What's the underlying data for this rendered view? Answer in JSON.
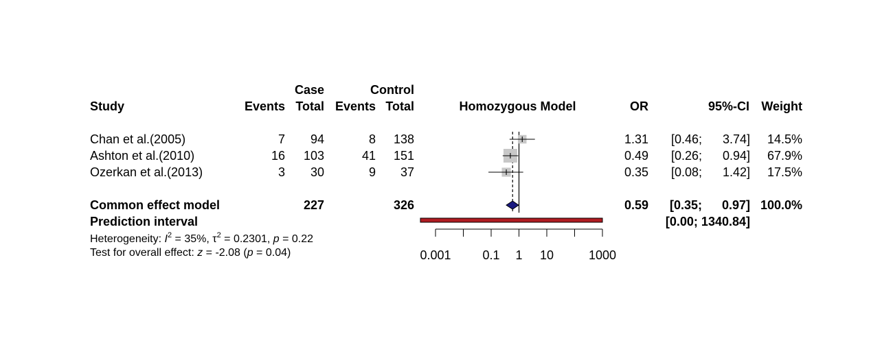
{
  "headers": {
    "case_group": "Case",
    "control_group": "Control",
    "study": "Study",
    "events": "Events",
    "total": "Total",
    "plot_title": "Homozygous Model",
    "or": "OR",
    "ci": "95%-CI",
    "weight": "Weight"
  },
  "studies": [
    {
      "name": "Chan et al.(2005)",
      "case_events": "7",
      "case_total": "94",
      "control_events": "8",
      "control_total": "138",
      "or": "1.31",
      "ci_low": "[0.46;",
      "ci_high": "3.74]",
      "weight": "14.5%"
    },
    {
      "name": "Ashton et al.(2010)",
      "case_events": "16",
      "case_total": "103",
      "control_events": "41",
      "control_total": "151",
      "or": "0.49",
      "ci_low": "[0.26;",
      "ci_high": "0.94]",
      "weight": "67.9%"
    },
    {
      "name": "Ozerkan et al.(2013)",
      "case_events": "3",
      "case_total": "30",
      "control_events": "9",
      "control_total": "37",
      "or": "0.35",
      "ci_low": "[0.08;",
      "ci_high": "1.42]",
      "weight": "17.5%"
    }
  ],
  "common": {
    "label": "Common effect model",
    "case_total": "227",
    "control_total": "326",
    "or": "0.59",
    "ci_low": "[0.35;",
    "ci_high": "0.97]",
    "weight": "100.0%"
  },
  "prediction": {
    "label": "Prediction interval",
    "ci": "[0.00; 1340.84]"
  },
  "heterogeneity": {
    "prefix": "Heterogeneity: ",
    "i2_symbol": "I",
    "i2_value": " = 35%, ",
    "tau_symbol": "τ",
    "tau_value": " = 0.2301, ",
    "p_symbol": "p",
    "p_value": " = 0.22"
  },
  "overall_test": {
    "prefix": "Test for overall effect: ",
    "z_symbol": "z",
    "z_value": " = -2.08 (",
    "p_symbol": "p",
    "p_value": " = 0.04)"
  },
  "colors": {
    "square": "#c8c8c8",
    "diamond_fill": "#1a1a80",
    "prediction_fill": "#b01c22"
  },
  "chart_data": {
    "type": "forest",
    "x_scale": "log",
    "xlim": [
      0.001,
      1000
    ],
    "x_ticks": [
      0.001,
      0.1,
      1,
      10,
      1000
    ],
    "x_tick_labels": [
      "0.001",
      "0.1",
      "1",
      "10",
      "1000"
    ],
    "minor_ticks": [
      0.01,
      100
    ],
    "reference_line": 1,
    "common_effect_line": 0.59,
    "studies": [
      {
        "name": "Chan et al.(2005)",
        "or": 1.31,
        "lower": 0.46,
        "upper": 3.74,
        "weight": 14.5
      },
      {
        "name": "Ashton et al.(2010)",
        "or": 0.49,
        "lower": 0.26,
        "upper": 0.94,
        "weight": 67.9
      },
      {
        "name": "Ozerkan et al.(2013)",
        "or": 0.35,
        "lower": 0.08,
        "upper": 1.42,
        "weight": 17.5
      }
    ],
    "common_effect": {
      "or": 0.59,
      "lower": 0.35,
      "upper": 0.97
    },
    "prediction_interval": {
      "lower": 0.0,
      "upper": 1340.84
    }
  }
}
